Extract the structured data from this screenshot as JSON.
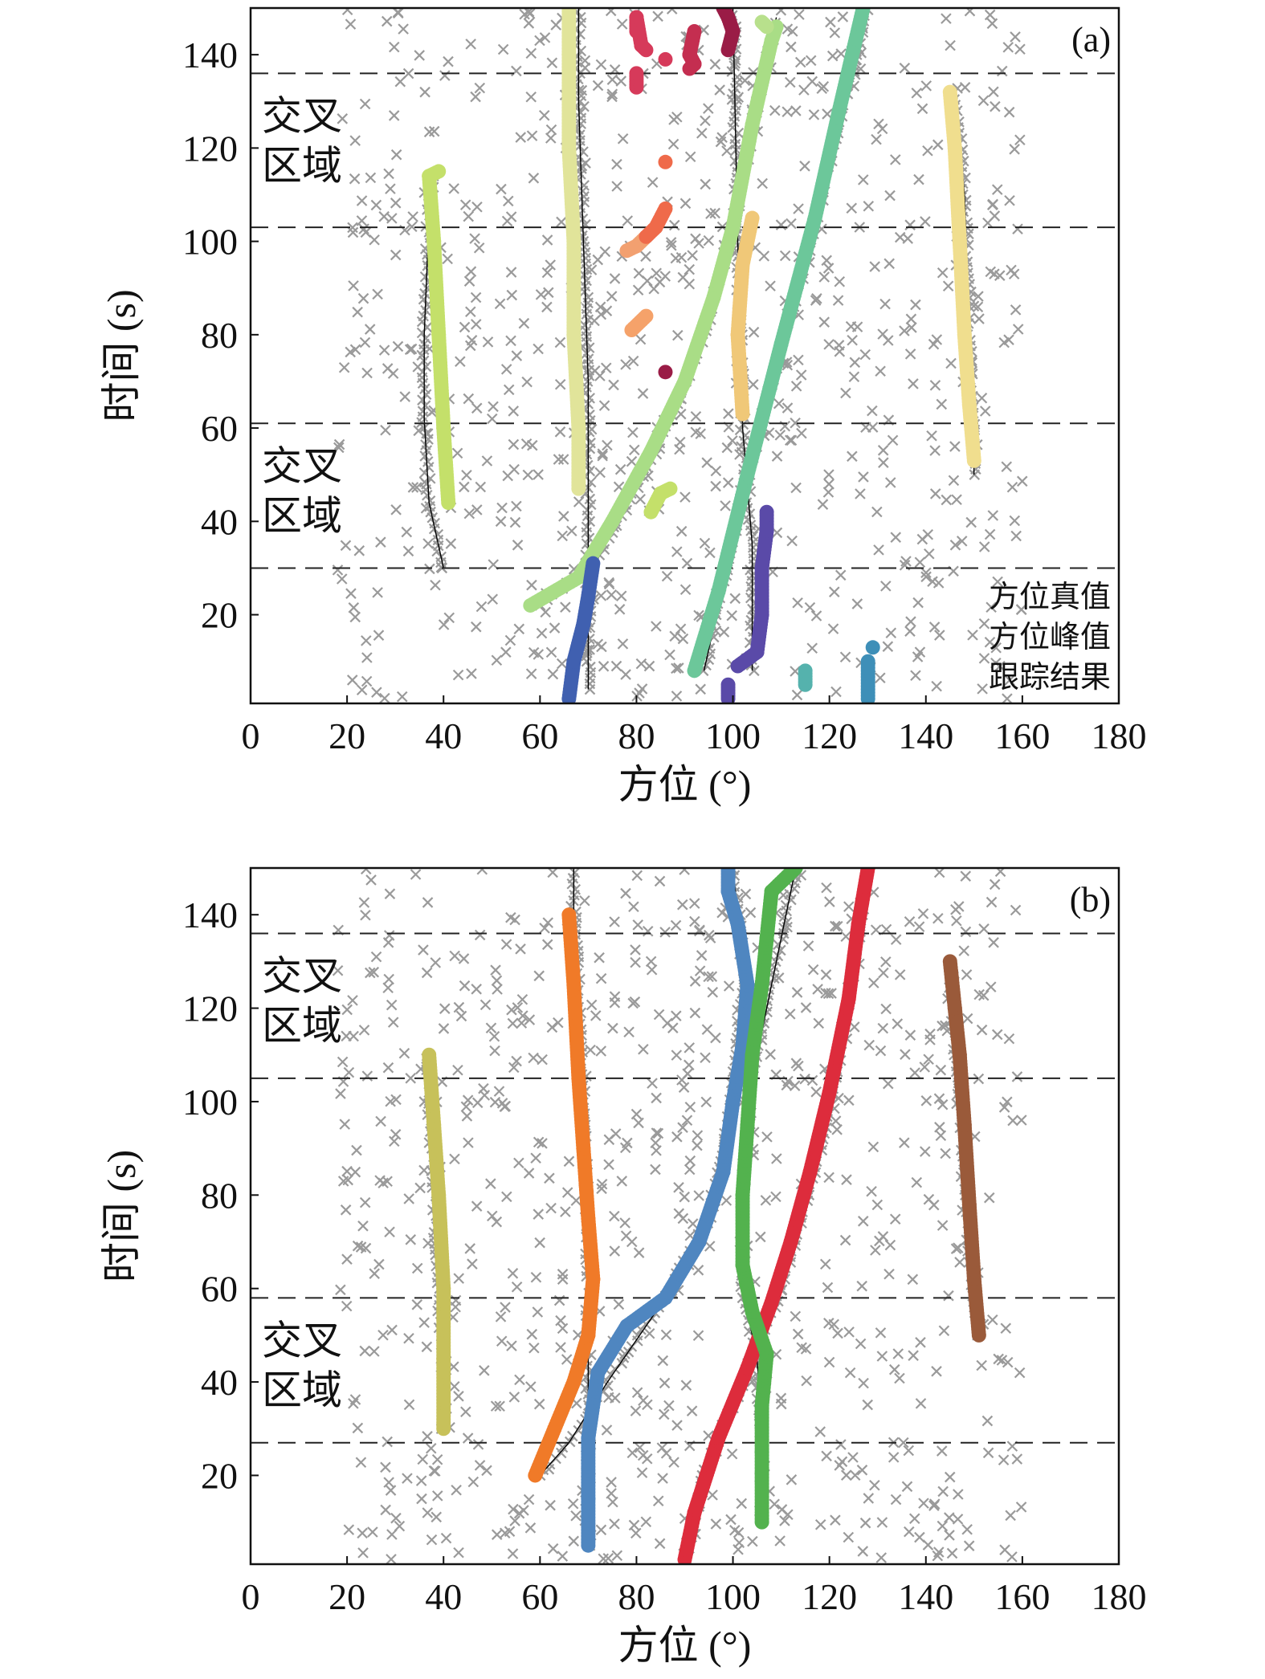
{
  "chart_data": [
    {
      "panel": "(a)",
      "type": "scatter",
      "xlabel": "方位 (°)",
      "ylabel": "时间 (s)",
      "xlim": [
        0,
        180
      ],
      "ylim": [
        1,
        150
      ],
      "xticks": [
        "0",
        "20",
        "40",
        "60",
        "80",
        "100",
        "120",
        "140",
        "160",
        "180"
      ],
      "yticks": [
        "20",
        "40",
        "60",
        "80",
        "100",
        "120",
        "140"
      ],
      "crossing_boundaries": [
        30,
        61,
        103,
        136
      ],
      "crossing_regions": [
        {
          "lines": [
            "交叉",
            "区域"
          ],
          "y_top": 61
        },
        {
          "lines": [
            "交叉",
            "区域"
          ],
          "y_top": 136
        }
      ],
      "legend": [
        "方位真值",
        "方位峰值",
        "跟踪结果"
      ],
      "legend_position": "bottom-right",
      "clutter": {
        "color": "#9a9a9a",
        "marker": "x",
        "seed": 11,
        "count": 700
      },
      "truth": [
        {
          "points": [
            [
              40,
              30
            ],
            [
              37,
              44
            ],
            [
              36,
              62
            ],
            [
              36,
              80
            ],
            [
              37,
              105
            ],
            [
              38,
              115
            ]
          ]
        },
        {
          "points": [
            [
              70,
              4
            ],
            [
              70,
              30
            ],
            [
              70,
              50
            ],
            [
              70,
              70
            ],
            [
              69,
              100
            ],
            [
              68,
              130
            ],
            [
              68,
              150
            ]
          ]
        },
        {
          "points": [
            [
              60,
              22
            ],
            [
              72,
              32
            ],
            [
              84,
              55
            ],
            [
              94,
              80
            ],
            [
              100,
              103
            ],
            [
              104,
              125
            ],
            [
              109,
              148
            ]
          ]
        },
        {
          "points": [
            [
              94,
              8
            ],
            [
              103,
              50
            ],
            [
              111,
              80
            ],
            [
              118,
              108
            ],
            [
              123,
              130
            ],
            [
              128,
              150
            ]
          ]
        },
        {
          "points": [
            [
              104,
              8
            ],
            [
              104,
              35
            ],
            [
              102,
              60
            ],
            [
              101,
              100
            ],
            [
              100,
              150
            ]
          ]
        },
        {
          "points": [
            [
              150,
              50
            ],
            [
              149,
              80
            ],
            [
              148,
              110
            ],
            [
              146,
              133
            ]
          ]
        }
      ],
      "tracks": [
        {
          "color": "#c4e06a",
          "points": [
            [
              41,
              44
            ],
            [
              40,
              60
            ],
            [
              39,
              80
            ],
            [
              38,
              100
            ],
            [
              37,
              114
            ],
            [
              39,
              115
            ]
          ]
        },
        {
          "color": "#c4e06a",
          "points": [
            [
              83,
              42
            ],
            [
              85,
              46
            ],
            [
              87,
              47
            ]
          ]
        },
        {
          "color": "#e1e49a",
          "points": [
            [
              68,
              47
            ],
            [
              68,
              60
            ],
            [
              67,
              80
            ],
            [
              67,
              100
            ],
            [
              66,
              120
            ],
            [
              66,
              140
            ],
            [
              66,
              150
            ]
          ]
        },
        {
          "color": "#a9dd86",
          "points": [
            [
              58,
              22
            ],
            [
              68,
              28
            ],
            [
              75,
              40
            ],
            [
              83,
              55
            ],
            [
              90,
              70
            ],
            [
              96,
              88
            ],
            [
              100,
              103
            ],
            [
              104,
              125
            ],
            [
              108,
              143
            ],
            [
              109,
              146
            ]
          ]
        },
        {
          "color": "#6cc79a",
          "points": [
            [
              92,
              8
            ],
            [
              97,
              25
            ],
            [
              103,
              50
            ],
            [
              110,
              78
            ],
            [
              117,
              105
            ],
            [
              122,
              128
            ],
            [
              127,
              150
            ]
          ]
        },
        {
          "color": "#b8e08c",
          "points": [
            [
              106,
              147
            ],
            [
              107,
              146
            ]
          ]
        },
        {
          "color": "#4060b0",
          "points": [
            [
              66,
              2
            ],
            [
              67,
              10
            ],
            [
              69,
              18
            ],
            [
              70,
              24
            ],
            [
              71,
              31
            ]
          ]
        },
        {
          "color": "#5a4aa8",
          "points": [
            [
              99,
              2
            ],
            [
              99,
              5
            ]
          ]
        },
        {
          "color": "#5a4aa8",
          "points": [
            [
              101,
              9
            ],
            [
              105,
              12
            ],
            [
              106,
              20
            ],
            [
              106,
              30
            ],
            [
              107,
              38
            ],
            [
              107,
              42
            ]
          ]
        },
        {
          "color": "#3e8fb8",
          "points": [
            [
              128,
              2
            ],
            [
              128,
              10
            ]
          ]
        },
        {
          "color": "#3e8fb8",
          "points": [
            [
              129,
              13
            ]
          ]
        },
        {
          "color": "#55b2ad",
          "points": [
            [
              115,
              5
            ],
            [
              115,
              8
            ]
          ]
        },
        {
          "color": "#f0c878",
          "points": [
            [
              102,
              63
            ],
            [
              101,
              80
            ],
            [
              102,
              95
            ],
            [
              104,
              105
            ]
          ]
        },
        {
          "color": "#f0de8e",
          "points": [
            [
              150,
              53
            ],
            [
              149,
              65
            ],
            [
              148,
              80
            ],
            [
              147,
              100
            ],
            [
              146,
              120
            ],
            [
              145,
              132
            ]
          ]
        },
        {
          "color": "#f2a070",
          "points": [
            [
              78,
              98
            ],
            [
              80,
              99
            ],
            [
              82,
              101
            ]
          ]
        },
        {
          "color": "#ef6a4a",
          "points": [
            [
              82,
              101
            ],
            [
              84,
              103
            ],
            [
              86,
              107
            ]
          ]
        },
        {
          "color": "#ef6a4a",
          "points": [
            [
              86,
              117
            ]
          ]
        },
        {
          "color": "#f5a26a",
          "points": [
            [
              82,
              84
            ],
            [
              79,
              81
            ]
          ]
        },
        {
          "color": "#d63a5a",
          "points": [
            [
              80,
              133
            ],
            [
              80,
              136
            ]
          ]
        },
        {
          "color": "#d63a5a",
          "points": [
            [
              80,
              145
            ],
            [
              80,
              148
            ],
            [
              81,
              142
            ],
            [
              82,
              141
            ]
          ]
        },
        {
          "color": "#d63a5a",
          "points": [
            [
              86,
              139
            ]
          ]
        },
        {
          "color": "#c42e50",
          "points": [
            [
              91,
              137
            ],
            [
              92,
              138
            ],
            [
              91,
              140
            ],
            [
              92,
              145
            ]
          ]
        },
        {
          "color": "#9a1c46",
          "points": [
            [
              99,
              141
            ],
            [
              100,
              145
            ],
            [
              99,
              148
            ],
            [
              98,
              150
            ]
          ]
        },
        {
          "color": "#9a1c46",
          "points": [
            [
              86,
              72
            ]
          ]
        }
      ]
    },
    {
      "panel": "(b)",
      "type": "scatter",
      "xlabel": "方位 (°)",
      "ylabel": "时间 (s)",
      "xlim": [
        0,
        180
      ],
      "ylim": [
        1,
        150
      ],
      "xticks": [
        "0",
        "20",
        "40",
        "60",
        "80",
        "100",
        "120",
        "140",
        "160",
        "180"
      ],
      "yticks": [
        "20",
        "40",
        "60",
        "80",
        "100",
        "120",
        "140"
      ],
      "crossing_boundaries": [
        27,
        58,
        105,
        136
      ],
      "crossing_regions": [
        {
          "lines": [
            "交叉",
            "区域"
          ],
          "y_top": 58
        },
        {
          "lines": [
            "交叉",
            "区域"
          ],
          "y_top": 136
        }
      ],
      "clutter": {
        "color": "#9a9a9a",
        "marker": "x",
        "seed": 23,
        "count": 700
      },
      "truth": [
        {
          "points": [
            [
              40,
              30
            ],
            [
              40,
              45
            ],
            [
              39,
              60
            ],
            [
              38,
              80
            ],
            [
              37,
              100
            ],
            [
              37,
              110
            ]
          ]
        },
        {
          "points": [
            [
              70,
              5
            ],
            [
              70,
              30
            ],
            [
              70,
              50
            ],
            [
              70,
              70
            ],
            [
              69,
              100
            ],
            [
              67,
              140
            ],
            [
              67,
              150
            ]
          ]
        },
        {
          "points": [
            [
              60,
              20
            ],
            [
              66,
              27
            ],
            [
              74,
              40
            ],
            [
              86,
              58
            ],
            [
              95,
              75
            ],
            [
              99,
              95
            ],
            [
              101,
              110
            ],
            [
              102,
              130
            ],
            [
              100,
              150
            ]
          ]
        },
        {
          "points": [
            [
              90,
              2
            ],
            [
              94,
              20
            ],
            [
              102,
              40
            ],
            [
              110,
              60
            ],
            [
              117,
              85
            ],
            [
              122,
              110
            ],
            [
              128,
              150
            ]
          ]
        },
        {
          "points": [
            [
              106,
              10
            ],
            [
              106,
              30
            ],
            [
              105,
              45
            ],
            [
              102,
              60
            ],
            [
              102,
              80
            ],
            [
              104,
              105
            ],
            [
              108,
              125
            ],
            [
              113,
              150
            ]
          ]
        },
        {
          "points": [
            [
              151,
              50
            ],
            [
              149,
              70
            ],
            [
              147,
              100
            ],
            [
              145,
              130
            ]
          ]
        }
      ],
      "tracks": [
        {
          "color": "#c7c15a",
          "points": [
            [
              40,
              30
            ],
            [
              40,
              45
            ],
            [
              40,
              60
            ],
            [
              39,
              80
            ],
            [
              38,
              95
            ],
            [
              37,
              110
            ]
          ]
        },
        {
          "color": "#f07a28",
          "points": [
            [
              59,
              20
            ],
            [
              63,
              30
            ],
            [
              67,
              40
            ],
            [
              70,
              50
            ],
            [
              71,
              62
            ],
            [
              70,
              75
            ],
            [
              69,
              90
            ],
            [
              68,
              105
            ],
            [
              67,
              125
            ],
            [
              66,
              140
            ]
          ]
        },
        {
          "color": "#4f86c0",
          "points": [
            [
              70,
              5
            ],
            [
              70,
              15
            ],
            [
              70,
              28
            ],
            [
              72,
              42
            ],
            [
              78,
              52
            ],
            [
              86,
              58
            ],
            [
              93,
              70
            ],
            [
              98,
              85
            ],
            [
              100,
              100
            ],
            [
              102,
              112
            ],
            [
              103,
              125
            ],
            [
              101,
              138
            ],
            [
              99,
              145
            ],
            [
              99,
              150
            ]
          ]
        },
        {
          "color": "#dd2c3c",
          "points": [
            [
              90,
              2
            ],
            [
              92,
              12
            ],
            [
              97,
              28
            ],
            [
              103,
              43
            ],
            [
              108,
              57
            ],
            [
              112,
              70
            ],
            [
              116,
              85
            ],
            [
              120,
              102
            ],
            [
              124,
              122
            ],
            [
              126,
              138
            ],
            [
              128,
              150
            ]
          ]
        },
        {
          "color": "#53b24e",
          "points": [
            [
              106,
              10
            ],
            [
              106,
              25
            ],
            [
              106,
              35
            ],
            [
              107,
              46
            ],
            [
              104,
              55
            ],
            [
              102,
              65
            ],
            [
              102,
              80
            ],
            [
              103,
              95
            ],
            [
              104,
              110
            ],
            [
              106,
              125
            ],
            [
              107,
              135
            ],
            [
              108,
              145
            ],
            [
              113,
              150
            ]
          ]
        },
        {
          "color": "#9a5a3a",
          "points": [
            [
              151,
              50
            ],
            [
              150,
              62
            ],
            [
              149,
              78
            ],
            [
              148,
              95
            ],
            [
              147,
              110
            ],
            [
              146,
              120
            ],
            [
              145,
              130
            ]
          ]
        }
      ]
    }
  ]
}
